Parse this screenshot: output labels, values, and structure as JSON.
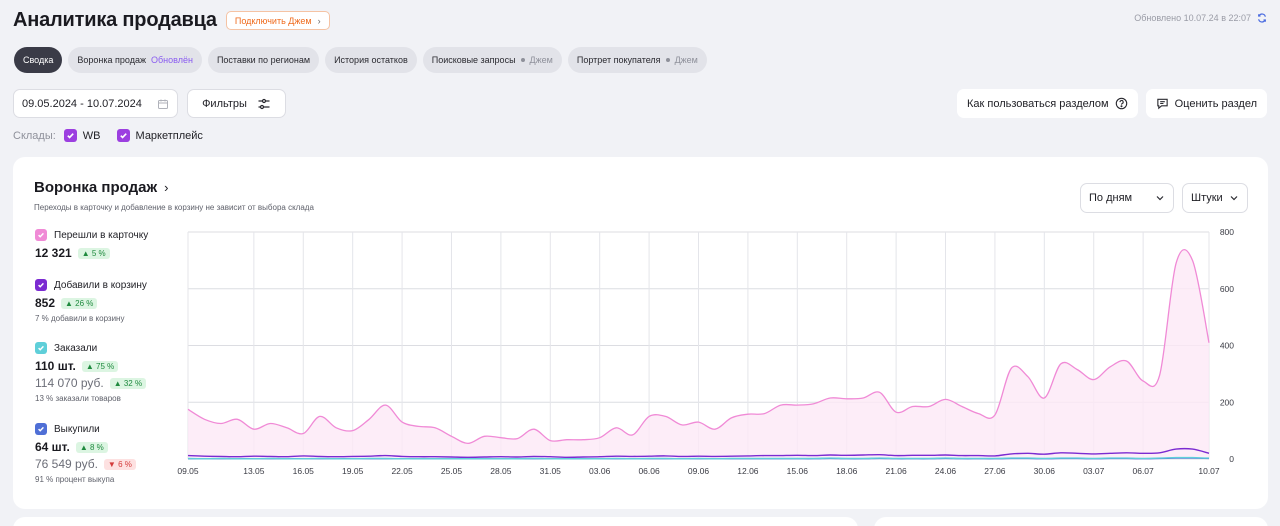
{
  "header": {
    "title": "Аналитика продавца",
    "jam_button": "Подключить Джем",
    "updated": "Обновлено 10.07.24 в 22:07"
  },
  "tabs": [
    {
      "label": "Сводка",
      "note": "",
      "active": true
    },
    {
      "label": "Воронка продаж",
      "note": "Обновлён",
      "note_style": "purple"
    },
    {
      "label": "Поставки по регионам",
      "note": ""
    },
    {
      "label": "История остатков",
      "note": ""
    },
    {
      "label": "Поисковые запросы",
      "note": "Джем",
      "note_style": "gray"
    },
    {
      "label": "Портрет покупателя",
      "note": "Джем",
      "note_style": "gray"
    }
  ],
  "controls": {
    "date_range": "09.05.2024 - 10.07.2024",
    "filters_label": "Фильтры",
    "howto_label": "Как пользоваться разделом",
    "rate_label": "Оценить раздел"
  },
  "warehouses": {
    "label": "Склады:",
    "items": [
      {
        "label": "WB",
        "checked": true
      },
      {
        "label": "Маркетплейс",
        "checked": true
      }
    ]
  },
  "funnel": {
    "title": "Воронка продаж",
    "subtitle": "Переходы в карточку и добавление в корзину не зависит от выбора склада",
    "period_select": "По дням",
    "unit_select": "Штуки",
    "metrics": [
      {
        "label": "Перешли в карточку",
        "value": "12 321",
        "change": "5 %",
        "color": "#f08ad6"
      },
      {
        "label": "Добавили в корзину",
        "value": "852",
        "change": "26 %",
        "note": "7 % добавили в корзину",
        "color": "#7b2bd1"
      },
      {
        "label": "Заказали",
        "value": "110 шт.",
        "change": "75 %",
        "value2": "114 070 руб.",
        "change2": "32 %",
        "note": "13 % заказали товаров",
        "color": "#5fcfd9"
      },
      {
        "label": "Выкупили",
        "value": "64 шт.",
        "change": "8 %",
        "value2": "76 549 руб.",
        "change2": "6 %",
        "note": "91 % процент выкупа",
        "color": "#4f6fd6"
      }
    ]
  },
  "chart_data": {
    "type": "line",
    "ylim": [
      0,
      800
    ],
    "yticks": [
      0,
      200,
      400,
      600,
      800
    ],
    "x_tick_labels": [
      "09.05",
      "13.05",
      "16.05",
      "19.05",
      "22.05",
      "25.05",
      "28.05",
      "31.05",
      "03.06",
      "06.06",
      "09.06",
      "12.06",
      "15.06",
      "18.06",
      "21.06",
      "24.06",
      "27.06",
      "30.06",
      "03.07",
      "06.07",
      "10.07"
    ],
    "x_dates": [
      "09.05",
      "10.05",
      "11.05",
      "12.05",
      "13.05",
      "14.05",
      "15.05",
      "16.05",
      "17.05",
      "18.05",
      "19.05",
      "20.05",
      "21.05",
      "22.05",
      "23.05",
      "24.05",
      "25.05",
      "26.05",
      "27.05",
      "28.05",
      "29.05",
      "30.05",
      "31.05",
      "01.06",
      "02.06",
      "03.06",
      "04.06",
      "05.06",
      "06.06",
      "07.06",
      "08.06",
      "09.06",
      "10.06",
      "11.06",
      "12.06",
      "13.06",
      "14.06",
      "15.06",
      "16.06",
      "17.06",
      "18.06",
      "19.06",
      "20.06",
      "21.06",
      "22.06",
      "23.06",
      "24.06",
      "25.06",
      "26.06",
      "27.06",
      "28.06",
      "29.06",
      "30.06",
      "01.07",
      "02.07",
      "03.07",
      "04.07",
      "05.07",
      "06.07",
      "07.07",
      "08.07",
      "09.07",
      "10.07"
    ],
    "series": [
      {
        "name": "Перешли в карточку",
        "color": "#f08ad6",
        "fill": "#fde8f6",
        "values": [
          175,
          140,
          125,
          140,
          105,
          125,
          110,
          90,
          150,
          110,
          100,
          140,
          190,
          130,
          115,
          110,
          80,
          55,
          80,
          75,
          72,
          105,
          65,
          68,
          68,
          75,
          110,
          85,
          150,
          150,
          120,
          130,
          105,
          145,
          158,
          160,
          190,
          190,
          195,
          215,
          212,
          215,
          235,
          165,
          185,
          185,
          210,
          185,
          160,
          155,
          320,
          290,
          215,
          335,
          315,
          280,
          325,
          345,
          275,
          295,
          690,
          700,
          410
        ]
      },
      {
        "name": "Добавили в корзину",
        "color": "#7b2bd1",
        "values": [
          12,
          10,
          9,
          8,
          10,
          9,
          8,
          11,
          9,
          8,
          9,
          10,
          12,
          9,
          8,
          8,
          7,
          6,
          7,
          8,
          7,
          9,
          8,
          6,
          7,
          8,
          10,
          9,
          10,
          11,
          9,
          10,
          9,
          10,
          11,
          12,
          12,
          13,
          12,
          14,
          13,
          14,
          15,
          12,
          13,
          13,
          14,
          12,
          12,
          11,
          18,
          20,
          17,
          22,
          20,
          18,
          20,
          22,
          20,
          22,
          35,
          35,
          20
        ]
      },
      {
        "name": "Заказали",
        "color": "#5fcfd9",
        "values": [
          2,
          1,
          2,
          1,
          1,
          2,
          1,
          1,
          2,
          1,
          1,
          2,
          2,
          1,
          1,
          1,
          1,
          1,
          1,
          1,
          1,
          2,
          1,
          1,
          1,
          1,
          2,
          1,
          2,
          2,
          1,
          2,
          1,
          2,
          2,
          2,
          2,
          2,
          2,
          3,
          2,
          2,
          3,
          2,
          2,
          2,
          3,
          2,
          2,
          2,
          3,
          3,
          2,
          3,
          3,
          2,
          3,
          3,
          2,
          3,
          5,
          5,
          3
        ]
      },
      {
        "name": "Выкупили",
        "color": "#4f6fd6",
        "values": [
          1,
          1,
          1,
          1,
          1,
          1,
          1,
          1,
          1,
          1,
          1,
          1,
          1,
          1,
          1,
          1,
          1,
          1,
          1,
          1,
          1,
          1,
          1,
          1,
          1,
          1,
          1,
          1,
          1,
          1,
          1,
          1,
          1,
          1,
          1,
          1,
          1,
          1,
          1,
          2,
          1,
          1,
          2,
          1,
          1,
          1,
          2,
          1,
          1,
          1,
          2,
          2,
          1,
          2,
          2,
          1,
          2,
          2,
          1,
          2,
          3,
          3,
          2
        ]
      }
    ]
  }
}
